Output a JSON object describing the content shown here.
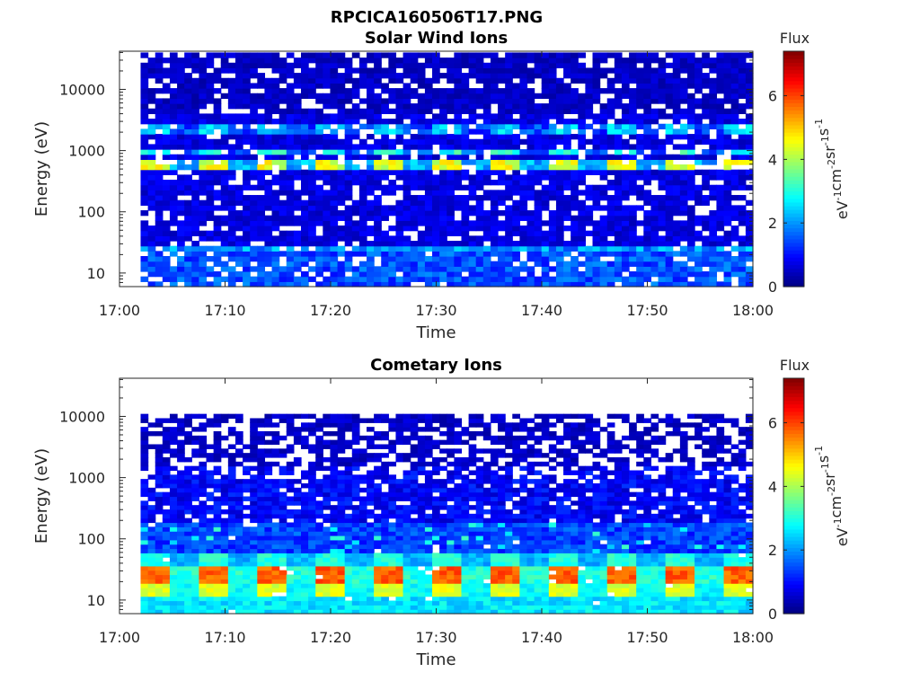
{
  "figure": {
    "title": "RPCICA160506T17.PNG"
  },
  "chart_data": [
    {
      "type": "heatmap",
      "title": "Solar Wind Ions",
      "xlabel": "Time",
      "ylabel": "Energy (eV)",
      "x_ticks": [
        "17:00",
        "17:10",
        "17:20",
        "17:30",
        "17:40",
        "17:50",
        "18:00"
      ],
      "x_range": [
        "17:00",
        "18:00"
      ],
      "y_scale": "log",
      "y_ticks": [
        10,
        100,
        1000,
        10000
      ],
      "y_tick_labels": [
        "10",
        "100",
        "1000",
        "10000"
      ],
      "y_range": [
        6,
        42000
      ],
      "data_start": "17:02",
      "colorbar": {
        "label": "Flux",
        "unit": "eV-1cm-2sr-1s-1",
        "range": [
          0,
          7.4
        ],
        "ticks": [
          0,
          2,
          4,
          6
        ],
        "colormap": "jet"
      },
      "features": [
        {
          "energy_ev": 600,
          "flux": 4.0,
          "note": "periodic bursts"
        },
        {
          "energy_ev": 1000,
          "flux": 3.0
        },
        {
          "energy_ev": 25,
          "flux": 2.5
        },
        {
          "energy_ev": 10,
          "flux": 1.8
        },
        {
          "energy_ev": 10000,
          "flux": 0.6
        }
      ]
    },
    {
      "type": "heatmap",
      "title": "Cometary Ions",
      "xlabel": "Time",
      "ylabel": "Energy (eV)",
      "x_ticks": [
        "17:00",
        "17:10",
        "17:20",
        "17:30",
        "17:40",
        "17:50",
        "18:00"
      ],
      "x_range": [
        "17:00",
        "18:00"
      ],
      "y_scale": "log",
      "y_ticks": [
        10,
        100,
        1000,
        10000
      ],
      "y_tick_labels": [
        "10",
        "100",
        "1000",
        "10000"
      ],
      "y_range": [
        6,
        42000
      ],
      "data_start": "17:02",
      "colorbar": {
        "label": "Flux",
        "unit": "eV-1cm-2sr-1s-1",
        "range": [
          0,
          7.4
        ],
        "ticks": [
          0,
          2,
          4,
          6
        ],
        "colormap": "jet"
      },
      "features": [
        {
          "energy_ev": 28,
          "flux": 5.8,
          "note": "periodic bursts"
        },
        {
          "energy_ev": 18,
          "flux": 4.5
        },
        {
          "energy_ev": 10,
          "flux": 2.8
        },
        {
          "energy_ev": 100,
          "flux": 2.0
        },
        {
          "energy_ev": 10000,
          "flux": 0.6
        }
      ]
    }
  ]
}
